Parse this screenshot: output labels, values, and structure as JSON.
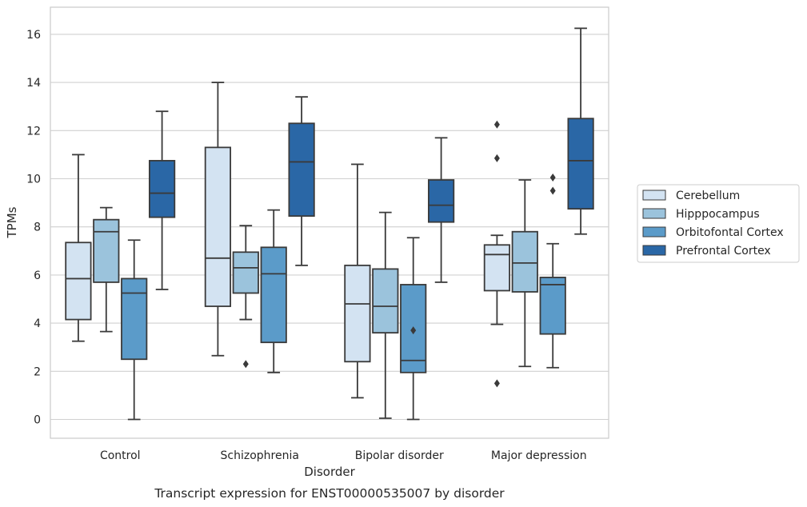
{
  "caption": "Transcript expression for ENST00000535007 by disorder",
  "chart_data": {
    "type": "box",
    "xlabel": "Disorder",
    "ylabel": "TPMs",
    "ylim": [
      -0.8,
      17.1
    ],
    "yticks": [
      0,
      2,
      4,
      6,
      8,
      10,
      12,
      14,
      16
    ],
    "grid": "horizontal",
    "legend_position": "right",
    "categories": [
      "Control",
      "Schizophrenia",
      "Bipolar disorder",
      "Major depression"
    ],
    "series": [
      {
        "name": "Cerebellum",
        "color": "#d3e3f2",
        "boxes": [
          {
            "q1": 4.15,
            "median": 5.85,
            "q3": 7.35,
            "whisker_low": 3.25,
            "whisker_high": 11.0,
            "outliers": []
          },
          {
            "q1": 4.7,
            "median": 6.7,
            "q3": 11.3,
            "whisker_low": 2.65,
            "whisker_high": 14.0,
            "outliers": []
          },
          {
            "q1": 2.4,
            "median": 4.8,
            "q3": 6.4,
            "whisker_low": 0.9,
            "whisker_high": 10.6,
            "outliers": []
          },
          {
            "q1": 5.35,
            "median": 6.85,
            "q3": 7.25,
            "whisker_low": 3.95,
            "whisker_high": 7.65,
            "outliers": [
              12.25,
              10.85,
              1.5
            ]
          }
        ]
      },
      {
        "name": "Hipppocampus",
        "color": "#9bc3dc",
        "boxes": [
          {
            "q1": 5.7,
            "median": 7.8,
            "q3": 8.3,
            "whisker_low": 3.65,
            "whisker_high": 8.8,
            "outliers": []
          },
          {
            "q1": 5.25,
            "median": 6.3,
            "q3": 6.95,
            "whisker_low": 4.15,
            "whisker_high": 8.05,
            "outliers": [
              2.3
            ]
          },
          {
            "q1": 3.6,
            "median": 4.7,
            "q3": 6.25,
            "whisker_low": 0.05,
            "whisker_high": 8.6,
            "outliers": []
          },
          {
            "q1": 5.3,
            "median": 6.5,
            "q3": 7.8,
            "whisker_low": 2.2,
            "whisker_high": 9.95,
            "outliers": []
          }
        ]
      },
      {
        "name": "Orbitofontal Cortex",
        "color": "#5b9bc9",
        "boxes": [
          {
            "q1": 2.5,
            "median": 5.25,
            "q3": 5.85,
            "whisker_low": 0.0,
            "whisker_high": 7.45,
            "outliers": []
          },
          {
            "q1": 3.2,
            "median": 6.05,
            "q3": 7.15,
            "whisker_low": 1.95,
            "whisker_high": 8.7,
            "outliers": []
          },
          {
            "q1": 1.95,
            "median": 2.45,
            "q3": 5.6,
            "whisker_low": 0.0,
            "whisker_high": 7.55,
            "outliers": [
              3.7
            ]
          },
          {
            "q1": 3.55,
            "median": 5.6,
            "q3": 5.9,
            "whisker_low": 2.15,
            "whisker_high": 7.3,
            "outliers": [
              10.05,
              9.5
            ]
          }
        ]
      },
      {
        "name": "Prefrontal Cortex",
        "color": "#2a67a6",
        "boxes": [
          {
            "q1": 8.4,
            "median": 9.4,
            "q3": 10.75,
            "whisker_low": 5.4,
            "whisker_high": 12.8,
            "outliers": []
          },
          {
            "q1": 8.45,
            "median": 10.7,
            "q3": 12.3,
            "whisker_low": 6.4,
            "whisker_high": 13.4,
            "outliers": []
          },
          {
            "q1": 8.2,
            "median": 8.9,
            "q3": 9.95,
            "whisker_low": 5.7,
            "whisker_high": 11.7,
            "outliers": []
          },
          {
            "q1": 8.75,
            "median": 10.75,
            "q3": 12.5,
            "whisker_low": 7.7,
            "whisker_high": 16.25,
            "outliers": []
          }
        ]
      }
    ]
  }
}
